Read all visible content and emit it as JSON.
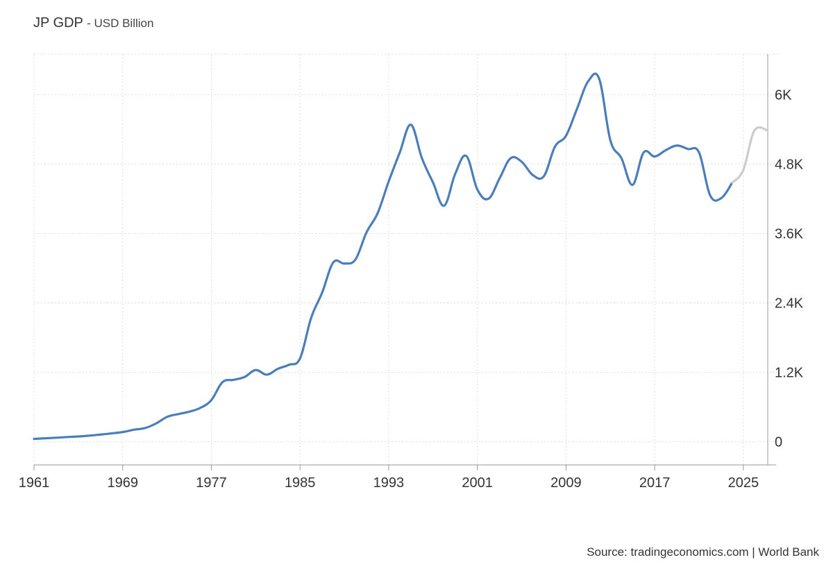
{
  "chart_data": {
    "type": "line",
    "title": "JP GDP",
    "subtitle": "- USD Billion",
    "source": "Source: tradingeconomics.com | World Bank",
    "x_ticks": [
      1961,
      1969,
      1977,
      1985,
      1993,
      2001,
      2009,
      2017,
      2025
    ],
    "y_ticks": [
      {
        "value": 0,
        "label": "0"
      },
      {
        "value": 1200,
        "label": "1.2K"
      },
      {
        "value": 2400,
        "label": "2.4K"
      },
      {
        "value": 3600,
        "label": "3.6K"
      },
      {
        "value": 4800,
        "label": "4.8K"
      },
      {
        "value": 6000,
        "label": "6K"
      }
    ],
    "xlim": [
      1961,
      2027.2
    ],
    "ylim": [
      -400,
      6700
    ],
    "y_axis_position": "right",
    "grid": true,
    "series": [
      {
        "color": "#4a7ebb",
        "points": [
          [
            1961,
            50
          ],
          [
            1962,
            60
          ],
          [
            1963,
            70
          ],
          [
            1964,
            82
          ],
          [
            1965,
            92
          ],
          [
            1966,
            106
          ],
          [
            1967,
            125
          ],
          [
            1968,
            145
          ],
          [
            1969,
            168
          ],
          [
            1970,
            208
          ],
          [
            1971,
            236
          ],
          [
            1972,
            315
          ],
          [
            1973,
            430
          ],
          [
            1974,
            478
          ],
          [
            1975,
            520
          ],
          [
            1976,
            585
          ],
          [
            1977,
            720
          ],
          [
            1978,
            1030
          ],
          [
            1979,
            1070
          ],
          [
            1980,
            1120
          ],
          [
            1981,
            1240
          ],
          [
            1982,
            1160
          ],
          [
            1983,
            1260
          ],
          [
            1984,
            1330
          ],
          [
            1985,
            1440
          ],
          [
            1986,
            2140
          ],
          [
            1987,
            2580
          ],
          [
            1988,
            3100
          ],
          [
            1989,
            3080
          ],
          [
            1990,
            3150
          ],
          [
            1991,
            3620
          ],
          [
            1992,
            3950
          ],
          [
            1993,
            4500
          ],
          [
            1994,
            5000
          ],
          [
            1995,
            5480
          ],
          [
            1996,
            4900
          ],
          [
            1997,
            4480
          ],
          [
            1998,
            4080
          ],
          [
            1999,
            4630
          ],
          [
            2000,
            4940
          ],
          [
            2001,
            4360
          ],
          [
            2002,
            4200
          ],
          [
            2003,
            4550
          ],
          [
            2004,
            4900
          ],
          [
            2005,
            4840
          ],
          [
            2006,
            4610
          ],
          [
            2007,
            4590
          ],
          [
            2008,
            5100
          ],
          [
            2009,
            5290
          ],
          [
            2010,
            5760
          ],
          [
            2011,
            6230
          ],
          [
            2012,
            6270
          ],
          [
            2013,
            5210
          ],
          [
            2014,
            4900
          ],
          [
            2015,
            4440
          ],
          [
            2016,
            5000
          ],
          [
            2017,
            4930
          ],
          [
            2018,
            5040
          ],
          [
            2019,
            5120
          ],
          [
            2020,
            5060
          ],
          [
            2021,
            5000
          ],
          [
            2022,
            4260
          ],
          [
            2023,
            4210
          ],
          [
            2024,
            4480
          ]
        ]
      },
      {
        "color": "#cccccc",
        "points": [
          [
            2024,
            4480
          ],
          [
            2025,
            4700
          ],
          [
            2026,
            5380
          ],
          [
            2027.2,
            5380
          ]
        ]
      }
    ]
  }
}
